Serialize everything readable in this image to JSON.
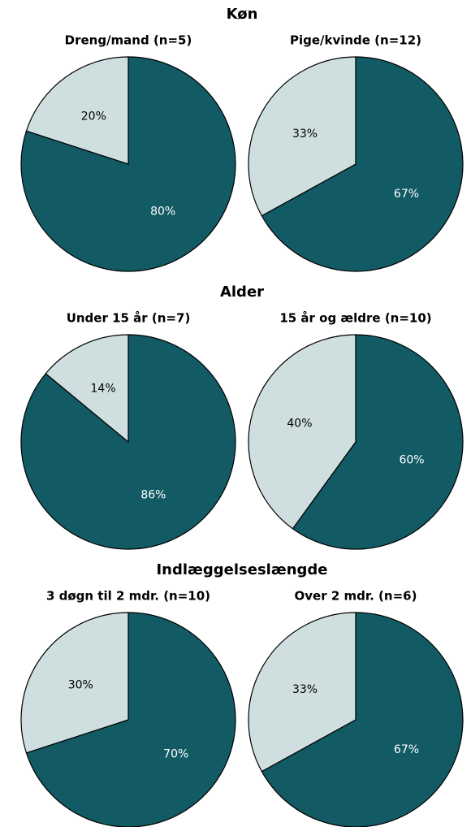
{
  "section_titles": [
    "Køn",
    "Alder",
    "Indlæggelseslængde"
  ],
  "chart_data": [
    {
      "type": "pie",
      "title": "Dreng/mand (n=5)",
      "values": [
        80,
        20
      ],
      "value_labels": [
        "80%",
        "20%"
      ],
      "colors": [
        "#125a64",
        "#cfdfe0"
      ]
    },
    {
      "type": "pie",
      "title": "Pige/kvinde (n=12)",
      "values": [
        67,
        33
      ],
      "value_labels": [
        "67%",
        "33%"
      ],
      "colors": [
        "#125a64",
        "#cfdfe0"
      ]
    },
    {
      "type": "pie",
      "title": "Under 15 år (n=7)",
      "values": [
        86,
        14
      ],
      "value_labels": [
        "86%",
        "14%"
      ],
      "colors": [
        "#125a64",
        "#cfdfe0"
      ]
    },
    {
      "type": "pie",
      "title": "15 år og ældre (n=10)",
      "values": [
        60,
        40
      ],
      "value_labels": [
        "60%",
        "40%"
      ],
      "colors": [
        "#125a64",
        "#cfdfe0"
      ]
    },
    {
      "type": "pie",
      "title": "3 døgn til 2 mdr. (n=10)",
      "values": [
        70,
        30
      ],
      "value_labels": [
        "70%",
        "30%"
      ],
      "colors": [
        "#125a64",
        "#cfdfe0"
      ]
    },
    {
      "type": "pie",
      "title": "Over 2 mdr. (n=6)",
      "values": [
        67,
        33
      ],
      "value_labels": [
        "67%",
        "33%"
      ],
      "colors": [
        "#125a64",
        "#cfdfe0"
      ]
    }
  ]
}
